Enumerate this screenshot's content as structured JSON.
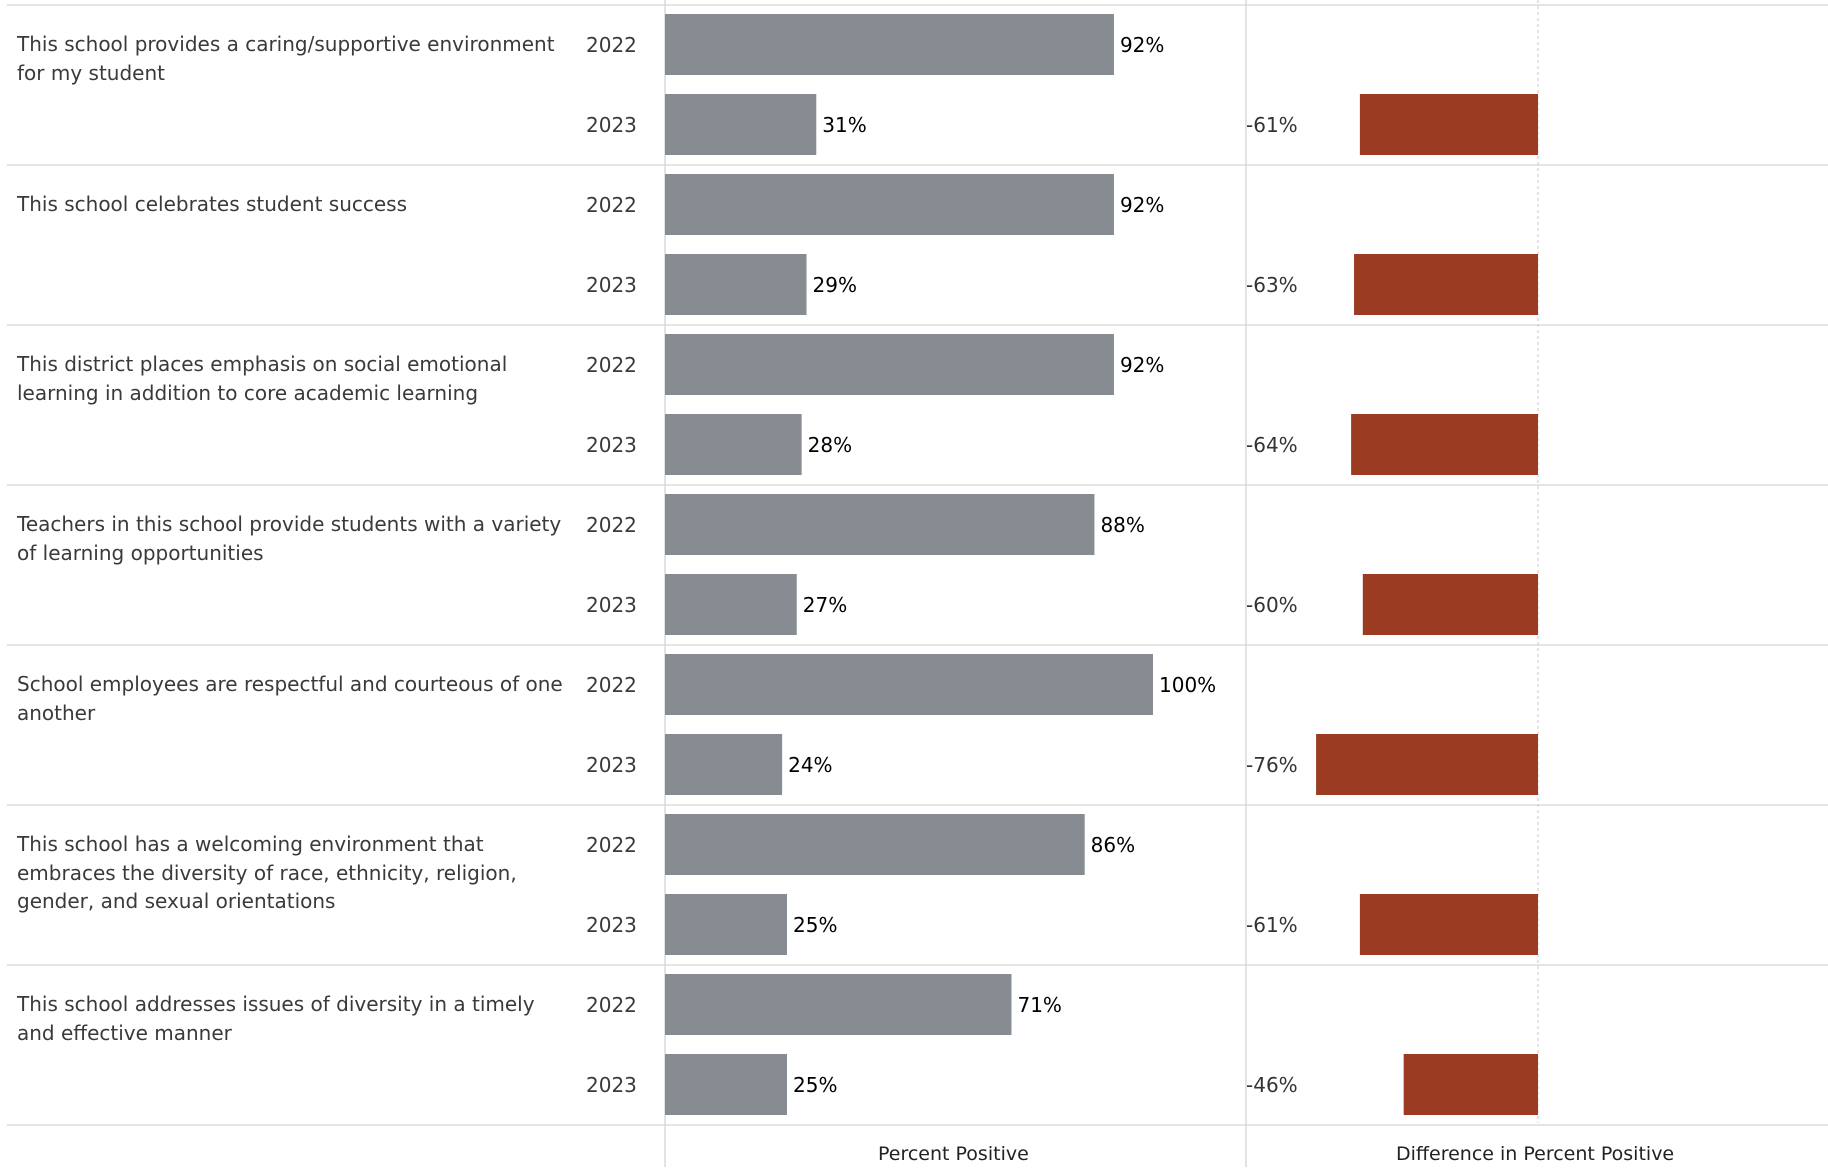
{
  "chart_data": {
    "type": "bar",
    "bar_color": "#868c92",
    "diff_color": "#9b3b22",
    "xlim_percent": [
      0,
      100
    ],
    "xlim_difference": [
      -100,
      0
    ],
    "series_labels": [
      "2022",
      "2023"
    ],
    "axis_titles": {
      "percent": "Percent Positive",
      "difference": "Difference in Percent Positive"
    },
    "questions": [
      {
        "text": "This school provides a caring/supportive environment for my student",
        "rows": [
          {
            "year": "2022",
            "value": 92,
            "label": "92%",
            "diff": null,
            "diff_label": ""
          },
          {
            "year": "2023",
            "value": 31,
            "label": "31%",
            "diff": -61,
            "diff_label": "-61%"
          }
        ]
      },
      {
        "text": "This school celebrates student success",
        "rows": [
          {
            "year": "2022",
            "value": 92,
            "label": "92%",
            "diff": null,
            "diff_label": ""
          },
          {
            "year": "2023",
            "value": 29,
            "label": "29%",
            "diff": -63,
            "diff_label": "-63%"
          }
        ]
      },
      {
        "text": "This district places emphasis on social emotional learning in addition to core academic learning",
        "rows": [
          {
            "year": "2022",
            "value": 92,
            "label": "92%",
            "diff": null,
            "diff_label": ""
          },
          {
            "year": "2023",
            "value": 28,
            "label": "28%",
            "diff": -64,
            "diff_label": "-64%"
          }
        ]
      },
      {
        "text": "Teachers in this school provide students with a variety of learning opportunities",
        "rows": [
          {
            "year": "2022",
            "value": 88,
            "label": "88%",
            "diff": null,
            "diff_label": ""
          },
          {
            "year": "2023",
            "value": 27,
            "label": "27%",
            "diff": -60,
            "diff_label": "-60%"
          }
        ]
      },
      {
        "text": "School employees are respectful and courteous of one another",
        "rows": [
          {
            "year": "2022",
            "value": 100,
            "label": "100%",
            "diff": null,
            "diff_label": ""
          },
          {
            "year": "2023",
            "value": 24,
            "label": "24%",
            "diff": -76,
            "diff_label": "-76%"
          }
        ]
      },
      {
        "text": "This school has a welcoming environment that embraces the diversity of race, ethnicity, religion, gender, and sexual orientations",
        "rows": [
          {
            "year": "2022",
            "value": 86,
            "label": "86%",
            "diff": null,
            "diff_label": ""
          },
          {
            "year": "2023",
            "value": 25,
            "label": "25%",
            "diff": -61,
            "diff_label": "-61%"
          }
        ]
      },
      {
        "text": "This school addresses issues of diversity in a timely and effective manner",
        "rows": [
          {
            "year": "2022",
            "value": 71,
            "label": "71%",
            "diff": null,
            "diff_label": ""
          },
          {
            "year": "2023",
            "value": 25,
            "label": "25%",
            "diff": -46,
            "diff_label": "-46%"
          }
        ]
      }
    ]
  }
}
